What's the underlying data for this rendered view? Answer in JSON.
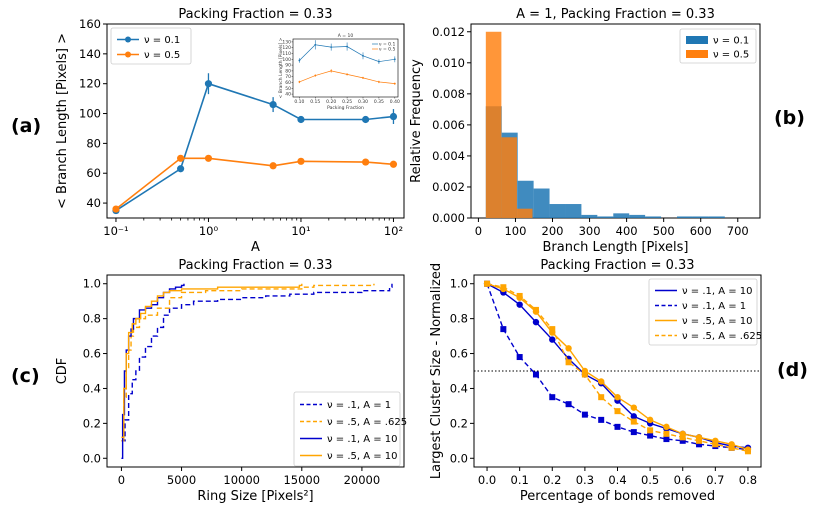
{
  "panel_labels": [
    "(a)",
    "(b)",
    "(c)",
    "(d)"
  ],
  "chart_data": [
    {
      "id": "a",
      "type": "line",
      "title": "Packing Fraction = 0.33",
      "xlabel": "A",
      "ylabel": "< Branch Length [Pixels] >",
      "xscale": "log",
      "xlim": [
        0.08,
        130
      ],
      "ylim": [
        30,
        160
      ],
      "xticks": [
        0.1,
        1,
        10,
        100
      ],
      "xtick_labels": [
        "10⁻¹",
        "10⁰",
        "10¹",
        "10²"
      ],
      "yticks": [
        40,
        60,
        80,
        100,
        120,
        140,
        160
      ],
      "legend_position": "top-left",
      "series": [
        {
          "name": "ν = 0.1",
          "color": "#1f77b4",
          "x": [
            0.1,
            0.5,
            1,
            5,
            10,
            50,
            100
          ],
          "y": [
            35,
            63,
            120,
            106,
            96,
            96,
            98
          ],
          "err": [
            1,
            1.5,
            7,
            5,
            2,
            2,
            5
          ]
        },
        {
          "name": "ν = 0.5",
          "color": "#ff7f0e",
          "x": [
            0.1,
            0.5,
            1,
            5,
            10,
            50,
            100
          ],
          "y": [
            36,
            70,
            70,
            65,
            68,
            67.5,
            66
          ],
          "err": [
            1,
            1.5,
            1.5,
            1.5,
            1.5,
            1,
            1.5
          ]
        }
      ],
      "inset": {
        "title": "A = 10",
        "xlabel": "Packing Fraction",
        "ylabel": "< Branch Length [Pixels] >",
        "xlim": [
          0.08,
          0.41
        ],
        "ylim": [
          35,
          135
        ],
        "xticks": [
          0.1,
          0.15,
          0.2,
          0.25,
          0.3,
          0.35,
          0.4
        ],
        "xtick_labels": [
          "0.10",
          "0.15",
          "0.20",
          "0.25",
          "0.30",
          "0.35",
          "0.40"
        ],
        "yticks": [
          40,
          50,
          60,
          70,
          80,
          90,
          100,
          110,
          120,
          130
        ],
        "series": [
          {
            "name": "ν = 0.1",
            "color": "#1f77b4",
            "x": [
              0.1,
              0.15,
              0.2,
              0.25,
              0.3,
              0.35,
              0.4
            ],
            "y": [
              98,
              125,
              121,
              122,
              106,
              96,
              100
            ],
            "err": [
              4,
              8,
              6,
              7,
              6,
              4,
              5
            ]
          },
          {
            "name": "ν = 0.5",
            "color": "#ff7f0e",
            "x": [
              0.1,
              0.15,
              0.2,
              0.25,
              0.3,
              0.35,
              0.4
            ],
            "y": [
              61,
              72,
              80,
              74,
              68,
              61,
              58
            ],
            "err": [
              2,
              2,
              3,
              2,
              2,
              2,
              2
            ]
          }
        ]
      }
    },
    {
      "id": "b",
      "type": "bar",
      "title": "A = 1, Packing Fraction = 0.33",
      "xlabel": "Branch Length [Pixels]",
      "ylabel": "Relative Frequency",
      "xlim": [
        -20,
        760
      ],
      "ylim": [
        0,
        0.0125
      ],
      "xticks": [
        0,
        100,
        200,
        300,
        400,
        500,
        600,
        700
      ],
      "yticks": [
        0,
        0.002,
        0.004,
        0.006,
        0.008,
        0.01,
        0.012
      ],
      "ytick_labels": [
        "0.000",
        "0.002",
        "0.004",
        "0.006",
        "0.008",
        "0.010",
        "0.012"
      ],
      "legend_position": "top-right",
      "series": [
        {
          "name": "ν = 0.1",
          "color": "#1f77b4",
          "bin_edges": [
            20,
            63,
            106,
            149,
            192,
            235,
            278,
            321,
            364,
            407,
            450,
            493,
            536,
            579,
            622,
            665
          ],
          "values": [
            0.0072,
            0.0055,
            0.0024,
            0.0019,
            0.0009,
            0.0009,
            0.0002,
            0.0001,
            0.0003,
            0.0002,
            0.0001,
            0.0,
            0.0001,
            0.0001,
            0.0001
          ]
        },
        {
          "name": "ν = 0.5",
          "color": "#ff7f0e",
          "bin_edges": [
            20,
            62,
            104,
            146
          ],
          "values": [
            0.012,
            0.0052,
            0.0006
          ]
        }
      ]
    },
    {
      "id": "c",
      "type": "line",
      "title": "Packing Fraction = 0.33",
      "xlabel": "Ring Size [Pixels²]",
      "ylabel": "CDF",
      "xlim": [
        -1200,
        23500
      ],
      "ylim": [
        -0.05,
        1.05
      ],
      "xticks": [
        0,
        5000,
        10000,
        15000,
        20000
      ],
      "yticks": [
        0.0,
        0.2,
        0.4,
        0.6,
        0.8,
        1.0
      ],
      "ytick_labels": [
        "0.0",
        "0.2",
        "0.4",
        "0.6",
        "0.8",
        "1.0"
      ],
      "legend_position": "bottom-right",
      "series": [
        {
          "name": "ν = .1, A = 1",
          "color": "#0000cd",
          "dash": true,
          "x": [
            0,
            300,
            600,
            900,
            1200,
            1500,
            2000,
            2500,
            3000,
            3500,
            4000,
            5000,
            6000,
            8000,
            10000,
            12000,
            14000,
            16000,
            18000,
            20000,
            22000,
            22300,
            22500
          ],
          "y": [
            0.1,
            0.22,
            0.37,
            0.45,
            0.5,
            0.58,
            0.64,
            0.7,
            0.75,
            0.82,
            0.86,
            0.88,
            0.9,
            0.91,
            0.92,
            0.93,
            0.94,
            0.95,
            0.95,
            0.96,
            0.96,
            0.98,
            1.0
          ]
        },
        {
          "name": "ν = .5, A = .625",
          "color": "#ffa500",
          "dash": true,
          "x": [
            0,
            200,
            400,
            600,
            800,
            1000,
            1500,
            2000,
            3000,
            4000,
            5000,
            7000,
            10000,
            14000,
            15000,
            16000,
            18000,
            19500,
            21000
          ],
          "y": [
            0.1,
            0.35,
            0.52,
            0.62,
            0.7,
            0.75,
            0.8,
            0.82,
            0.86,
            0.92,
            0.95,
            0.96,
            0.97,
            0.97,
            0.98,
            0.99,
            0.99,
            0.99,
            1.0
          ]
        },
        {
          "name": "ν = .1, A = 10",
          "color": "#0000cd",
          "dash": false,
          "x": [
            0,
            100,
            250,
            400,
            600,
            800,
            1000,
            1500,
            2000,
            2500,
            3000,
            3500,
            4000,
            4500,
            5000,
            5200
          ],
          "y": [
            0.0,
            0.25,
            0.5,
            0.62,
            0.7,
            0.74,
            0.8,
            0.85,
            0.86,
            0.88,
            0.92,
            0.95,
            0.97,
            0.98,
            0.99,
            1.0
          ]
        },
        {
          "name": "ν = .5, A = 10",
          "color": "#ffa500",
          "dash": false,
          "x": [
            0,
            200,
            400,
            600,
            900,
            1200,
            1600,
            2000,
            2500,
            3000,
            3500,
            4000,
            5000,
            6000,
            8000,
            10000,
            12000,
            14000,
            14800,
            15000
          ],
          "y": [
            0.12,
            0.4,
            0.6,
            0.72,
            0.77,
            0.8,
            0.83,
            0.87,
            0.9,
            0.93,
            0.95,
            0.96,
            0.97,
            0.97,
            0.98,
            0.98,
            0.98,
            0.98,
            0.99,
            1.0
          ]
        }
      ]
    },
    {
      "id": "d",
      "type": "line",
      "title": "Packing Fraction = 0.33",
      "xlabel": "Percentage of bonds removed",
      "ylabel": "Largest Cluster Size - Normalized",
      "xlim": [
        -0.04,
        0.84
      ],
      "ylim": [
        -0.05,
        1.05
      ],
      "xticks": [
        0.0,
        0.1,
        0.2,
        0.3,
        0.4,
        0.5,
        0.6,
        0.7,
        0.8
      ],
      "xtick_labels": [
        "0.0",
        "0.1",
        "0.2",
        "0.3",
        "0.4",
        "0.5",
        "0.6",
        "0.7",
        "0.8"
      ],
      "yticks": [
        0.0,
        0.2,
        0.4,
        0.6,
        0.8,
        1.0
      ],
      "ytick_labels": [
        "0.0",
        "0.2",
        "0.4",
        "0.6",
        "0.8",
        "1.0"
      ],
      "hline": 0.5,
      "legend_position": "top-right",
      "series": [
        {
          "name": "ν = .1, A = 10",
          "color": "#0000cd",
          "dash": false,
          "marker": "circle",
          "x": [
            0,
            0.05,
            0.1,
            0.15,
            0.2,
            0.25,
            0.3,
            0.35,
            0.4,
            0.45,
            0.5,
            0.55,
            0.6,
            0.65,
            0.7,
            0.75,
            0.8
          ],
          "y": [
            1.0,
            0.95,
            0.88,
            0.78,
            0.68,
            0.57,
            0.48,
            0.43,
            0.33,
            0.24,
            0.2,
            0.17,
            0.14,
            0.12,
            0.09,
            0.07,
            0.06
          ]
        },
        {
          "name": "ν = .1, A = 1",
          "color": "#0000cd",
          "dash": true,
          "marker": "square",
          "x": [
            0,
            0.05,
            0.1,
            0.15,
            0.2,
            0.25,
            0.3,
            0.35,
            0.4,
            0.45,
            0.5,
            0.55,
            0.6,
            0.65,
            0.7,
            0.75,
            0.8
          ],
          "y": [
            1.0,
            0.74,
            0.58,
            0.48,
            0.35,
            0.31,
            0.25,
            0.22,
            0.18,
            0.15,
            0.13,
            0.11,
            0.1,
            0.08,
            0.07,
            0.06,
            0.05
          ]
        },
        {
          "name": "ν = .5, A = 10",
          "color": "#ffa500",
          "dash": false,
          "marker": "circle",
          "x": [
            0,
            0.05,
            0.1,
            0.15,
            0.2,
            0.25,
            0.3,
            0.35,
            0.4,
            0.45,
            0.5,
            0.55,
            0.6,
            0.65,
            0.7,
            0.75,
            0.8
          ],
          "y": [
            1.0,
            0.97,
            0.92,
            0.84,
            0.72,
            0.63,
            0.5,
            0.44,
            0.35,
            0.29,
            0.22,
            0.18,
            0.14,
            0.12,
            0.1,
            0.08,
            0.05
          ]
        },
        {
          "name": "ν = .5, A = .625",
          "color": "#ffa500",
          "dash": true,
          "marker": "square",
          "x": [
            0,
            0.05,
            0.1,
            0.15,
            0.2,
            0.25,
            0.3,
            0.35,
            0.4,
            0.45,
            0.5,
            0.55,
            0.6,
            0.65,
            0.7,
            0.75,
            0.8
          ],
          "y": [
            1.0,
            0.98,
            0.93,
            0.85,
            0.74,
            0.55,
            0.48,
            0.35,
            0.27,
            0.21,
            0.16,
            0.14,
            0.12,
            0.1,
            0.08,
            0.06,
            0.04
          ]
        }
      ]
    }
  ]
}
